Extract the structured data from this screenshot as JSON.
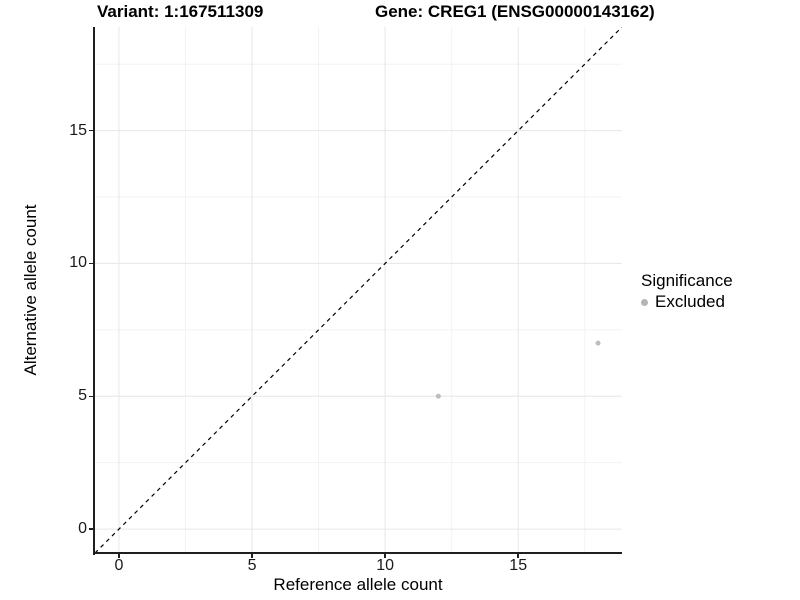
{
  "figure": {
    "title_left": "Variant: 1:167511309",
    "title_right": "Gene: CREG1 (ENSG00000143162)"
  },
  "chart_data": {
    "type": "scatter",
    "title": "Variant: 1:167511309 — Gene: CREG1 (ENSG00000143162)",
    "xlabel": "Reference allele count",
    "ylabel": "Alternative allele count",
    "xlim": [
      -0.9,
      18.9
    ],
    "ylim": [
      -0.9,
      18.9
    ],
    "x_ticks": [
      0,
      5,
      10,
      15
    ],
    "y_ticks": [
      0,
      5,
      10,
      15
    ],
    "x_minor_ticks": [
      2.5,
      7.5,
      12.5,
      17.5
    ],
    "y_minor_ticks": [
      2.5,
      7.5,
      12.5,
      17.5
    ],
    "grid": true,
    "reference_line": {
      "type": "identity_y_equals_x",
      "style": "dashed",
      "color": "#000000"
    },
    "series": [
      {
        "name": "Excluded",
        "color": "#bdbdbd",
        "point_radius": 2.5,
        "points": [
          [
            12,
            5
          ],
          [
            18,
            7
          ]
        ]
      }
    ],
    "legend": {
      "title": "Significance",
      "position": "right",
      "items": [
        {
          "label": "Excluded",
          "color": "#b5b5b5",
          "shape": "circle"
        }
      ]
    }
  },
  "colors": {
    "background": "#ffffff",
    "grid_major": "#e6e6e6",
    "grid_minor": "#f3f3f3",
    "axis_line": "#1f1f1f",
    "tick_label": "#1a1a1a"
  }
}
